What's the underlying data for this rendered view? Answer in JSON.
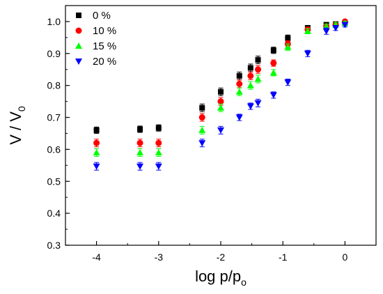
{
  "chart_data": {
    "type": "scatter",
    "title": "",
    "xlabel": {
      "main": "log p/p",
      "sub": "o"
    },
    "ylabel": {
      "main": "V / V",
      "sub": "0"
    },
    "xlim": [
      -4.5,
      0.5
    ],
    "ylim": [
      0.3,
      1.05
    ],
    "xticks": [
      -4,
      -3,
      -2,
      -1,
      0
    ],
    "yticks": [
      0.3,
      0.4,
      0.5,
      0.6,
      0.7,
      0.8,
      0.9,
      1.0
    ],
    "ytick_labels": [
      "0.3",
      "0.4",
      "0.5",
      "0.6",
      "0.7",
      "0.8",
      "0.9",
      "1.0"
    ],
    "xtick_labels": [
      "-4",
      "-3",
      "-2",
      "-1",
      "0"
    ],
    "legend_position": "top-left",
    "grid": false,
    "error_bars": true,
    "series": [
      {
        "name": "0 %",
        "marker": "square",
        "color": "#000000",
        "x": [
          -4,
          -3.3,
          -3,
          -2.3,
          -2,
          -1.7,
          -1.52,
          -1.4,
          -1.15,
          -0.92,
          -0.6,
          -0.3,
          -0.15,
          0
        ],
        "y": [
          0.66,
          0.663,
          0.667,
          0.73,
          0.78,
          0.83,
          0.855,
          0.88,
          0.91,
          0.948,
          0.98,
          0.99,
          0.992,
          0.995
        ],
        "err": [
          0.01,
          0.01,
          0.01,
          0.012,
          0.012,
          0.012,
          0.012,
          0.012,
          0.01,
          0.01,
          0.008,
          0.007,
          0.007,
          0.006
        ]
      },
      {
        "name": "10 %",
        "marker": "circle",
        "color": "#ff0000",
        "x": [
          -4,
          -3.3,
          -3,
          -2.3,
          -2,
          -1.7,
          -1.52,
          -1.4,
          -1.15,
          -0.92,
          -0.6,
          -0.3,
          -0.15,
          0
        ],
        "y": [
          0.62,
          0.62,
          0.62,
          0.7,
          0.75,
          0.805,
          0.83,
          0.85,
          0.87,
          0.93,
          0.975,
          0.985,
          0.99,
          1.0
        ],
        "err": [
          0.012,
          0.012,
          0.012,
          0.012,
          0.012,
          0.012,
          0.012,
          0.012,
          0.01,
          0.01,
          0.008,
          0.007,
          0.007,
          0.006
        ]
      },
      {
        "name": "15 %",
        "marker": "triangle-up",
        "color": "#00ff00",
        "x": [
          -4,
          -3.3,
          -3,
          -2.3,
          -2,
          -1.7,
          -1.52,
          -1.4,
          -1.15,
          -0.92,
          -0.6,
          -0.3,
          -0.15,
          0
        ],
        "y": [
          0.59,
          0.59,
          0.59,
          0.66,
          0.73,
          0.78,
          0.8,
          0.82,
          0.84,
          0.92,
          0.97,
          0.985,
          0.99,
          0.995
        ],
        "err": [
          0.012,
          0.012,
          0.012,
          0.012,
          0.012,
          0.012,
          0.012,
          0.012,
          0.01,
          0.01,
          0.008,
          0.007,
          0.007,
          0.006
        ]
      },
      {
        "name": "20 %",
        "marker": "triangle-down",
        "color": "#0000ff",
        "x": [
          -4,
          -3.3,
          -3,
          -2.3,
          -2,
          -1.7,
          -1.52,
          -1.4,
          -1.15,
          -0.92,
          -0.6,
          -0.3,
          -0.15,
          0
        ],
        "y": [
          0.547,
          0.547,
          0.547,
          0.62,
          0.66,
          0.7,
          0.735,
          0.745,
          0.77,
          0.81,
          0.9,
          0.97,
          0.98,
          0.99
        ],
        "err": [
          0.012,
          0.012,
          0.012,
          0.012,
          0.012,
          0.01,
          0.01,
          0.012,
          0.01,
          0.01,
          0.01,
          0.01,
          0.008,
          0.007
        ]
      }
    ]
  }
}
